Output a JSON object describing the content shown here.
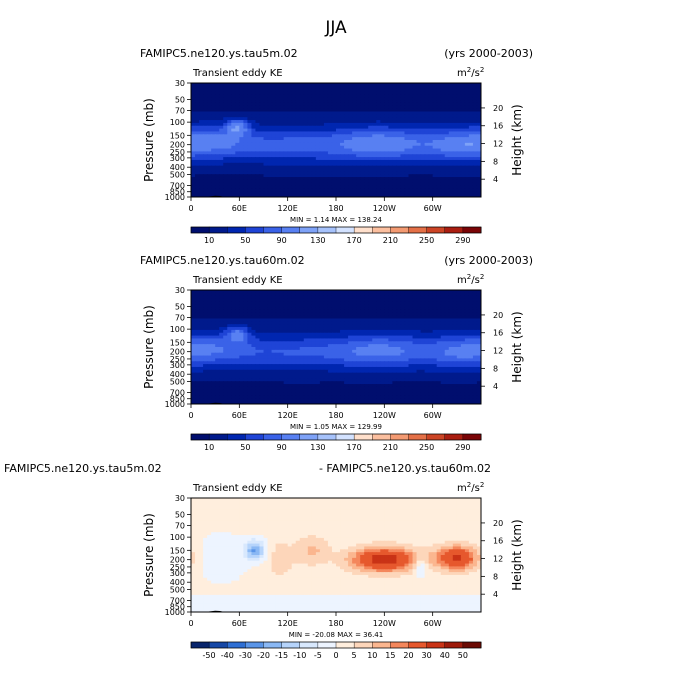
{
  "figure_title": "JJA",
  "panels": [
    {
      "case_title": "FAMIPC5.ne120.ys.tau5m.02",
      "years": "(yrs 2000-2003)",
      "variable": "Transient eddy KE",
      "units": "m",
      "units_exp": "2",
      "units_tail": "/s",
      "units_exp2": "2",
      "stats": "MIN =    1.14   MAX =  138.24"
    },
    {
      "case_title": "FAMIPC5.ne120.ys.tau60m.02",
      "years": "(yrs 2000-2003)",
      "variable": "Transient eddy KE",
      "units": "m",
      "units_exp": "2",
      "units_tail": "/s",
      "units_exp2": "2",
      "stats": "MIN =    1.05   MAX =  129.99"
    },
    {
      "case_title": "FAMIPC5.ne120.ys.tau5m.02",
      "years": "- FAMIPC5.ne120.ys.tau60m.02",
      "variable": "Transient eddy KE",
      "units": "m",
      "units_exp": "2",
      "units_tail": "/s",
      "units_exp2": "2",
      "stats": "MIN = -20.08   MAX =   36.41"
    }
  ],
  "axes": {
    "ylabel": "Pressure (mb)",
    "ylabel_right": "Height (km)",
    "pressure_ticks": [
      "30",
      "50",
      "70",
      "100",
      "150",
      "200",
      "250",
      "300",
      "400",
      "500",
      "700",
      "850",
      "1000"
    ],
    "height_ticks": [
      "20",
      "16",
      "12",
      "8",
      "4"
    ],
    "lon_ticks": [
      "0",
      "60E",
      "120E",
      "180",
      "120W",
      "60W"
    ]
  },
  "colors": {
    "abs_palette": [
      "#000e6e",
      "#001a8c",
      "#0026b0",
      "#1f44d6",
      "#3a62e8",
      "#5880f2",
      "#7ea2f7",
      "#a6c2fb",
      "#d3e2ff",
      "#ffe0cc",
      "#fbbf9f",
      "#f39a72",
      "#e47047",
      "#cc4425",
      "#aa1d10",
      "#7a0406"
    ],
    "diff_palette": [
      "#08246b",
      "#1547a6",
      "#2e6fd4",
      "#5a95e8",
      "#8ab8f4",
      "#b6d4fb",
      "#d8e8fd",
      "#edf4ff",
      "#ffeedd",
      "#fdd6ba",
      "#fbb68f",
      "#f4875c",
      "#e6582d",
      "#c93316",
      "#9e1a0a",
      "#6b0a03"
    ]
  },
  "chart_data": [
    {
      "type": "heatmap",
      "title": "FAMIPC5.ne120.ys.tau5m.02",
      "colorbar_labels": [
        "10",
        "50",
        "90",
        "130",
        "170",
        "210",
        "250",
        "290"
      ],
      "colorbar_levels": [
        10,
        30,
        50,
        70,
        90,
        110,
        130,
        150,
        170,
        190,
        210,
        230,
        250,
        270,
        290
      ],
      "xlim": [
        0,
        360
      ],
      "ylim": [
        1000,
        30
      ],
      "min": 1.14,
      "max": 138.24,
      "jet_cores": [
        {
          "lon": 60,
          "p": 120,
          "peak": 138
        },
        {
          "lon": 30,
          "p": 170,
          "peak": 95
        },
        {
          "lon": 235,
          "p": 190,
          "peak": 100
        },
        {
          "lon": 335,
          "p": 200,
          "peak": 95
        }
      ]
    },
    {
      "type": "heatmap",
      "title": "FAMIPC5.ne120.ys.tau60m.02",
      "colorbar_labels": [
        "10",
        "50",
        "90",
        "130",
        "170",
        "210",
        "250",
        "290"
      ],
      "colorbar_levels": [
        10,
        30,
        50,
        70,
        90,
        110,
        130,
        150,
        170,
        190,
        210,
        230,
        250,
        270,
        290
      ],
      "xlim": [
        0,
        360
      ],
      "ylim": [
        1000,
        30
      ],
      "min": 1.05,
      "max": 129.99,
      "jet_cores": [
        {
          "lon": 60,
          "p": 110,
          "peak": 130
        },
        {
          "lon": 30,
          "p": 170,
          "peak": 80
        },
        {
          "lon": 235,
          "p": 190,
          "peak": 75
        },
        {
          "lon": 335,
          "p": 200,
          "peak": 80
        }
      ]
    },
    {
      "type": "heatmap",
      "title": "FAMIPC5.ne120.ys.tau5m.02 - FAMIPC5.ne120.ys.tau60m.02",
      "colorbar_labels": [
        "-50",
        "-40",
        "-30",
        "-20",
        "-15",
        "-10",
        "-5",
        "0",
        "5",
        "10",
        "15",
        "20",
        "30",
        "40",
        "50"
      ],
      "colorbar_levels": [
        -50,
        -40,
        -30,
        -20,
        -15,
        -10,
        -5,
        0,
        5,
        10,
        15,
        20,
        30,
        40,
        50
      ],
      "xlim": [
        0,
        360
      ],
      "ylim": [
        1000,
        30
      ],
      "min": -20.08,
      "max": 36.41,
      "features": [
        {
          "lon": 78,
          "p": 160,
          "value": -20
        },
        {
          "lon": 240,
          "p": 210,
          "value": 36
        },
        {
          "lon": 330,
          "p": 190,
          "value": 30
        },
        {
          "lon": 150,
          "p": 150,
          "value": 10
        }
      ]
    }
  ]
}
